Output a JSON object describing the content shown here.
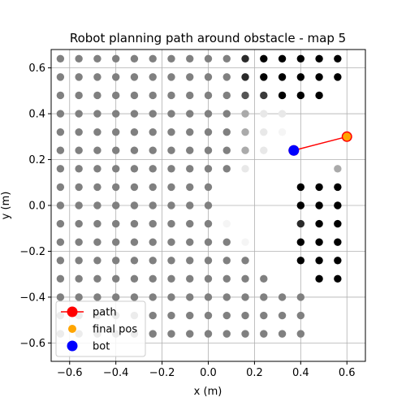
{
  "chart_data": {
    "type": "scatter",
    "title": "Robot planning path around obstacle - map 5",
    "xlabel": "x (m)",
    "ylabel": "y (m)",
    "xlim": [
      -0.68,
      0.68
    ],
    "ylim": [
      -0.68,
      0.68
    ],
    "grid": true,
    "xticks": [
      -0.6,
      -0.4,
      -0.2,
      0.0,
      0.2,
      0.4,
      0.6
    ],
    "yticks": [
      -0.6,
      -0.4,
      -0.2,
      0.0,
      0.2,
      0.4,
      0.6
    ],
    "xtick_labels": [
      "−0.6",
      "−0.4",
      "−0.2",
      "0.0",
      "0.2",
      "0.4",
      "0.6"
    ],
    "ytick_labels": [
      "−0.6",
      "−0.4",
      "−0.2",
      "0.0",
      "0.2",
      "0.4",
      "0.6"
    ],
    "map_points": {
      "x_values": [
        -0.64,
        -0.56,
        -0.48,
        -0.4,
        -0.32,
        -0.24,
        -0.16,
        -0.08,
        0.0,
        0.08,
        0.16,
        0.24,
        0.32,
        0.4,
        0.48,
        0.56
      ],
      "y_values": [
        0.64,
        0.56,
        0.48,
        0.4,
        0.32,
        0.24,
        0.16,
        0.08,
        0.0,
        -0.08,
        -0.16,
        -0.24,
        -0.32,
        -0.4,
        -0.48,
        -0.56
      ],
      "gray_levels": [
        "GGGGGGGGGGdKKKKK",
        "GGGGGGGGGGdKKKKK",
        "GGGGGGGGGGgmKKK.",
        "GGGGGGGGGGlvv...",
        "GGGGGGGGGGlvw...",
        "GGGGGGGGGGlv....",
        "GGGGGGGGGGv....l",
        "GGGGGGGGG....KKK",
        "GGGGGGGGG....KKK",
        "GGGGGGGGGw...dKK",
        "GGGGGGGGGGw..KKK",
        "GGGGGGGGGGG..KKK",
        "GGGGGGGGGGGG..KK",
        "GGGGGGGGGGGGGG..",
        "GGGGGGGGGGGGGG..",
        "GGGGGGGGGGGGGG.."
      ],
      "color_key": {
        "G": "#808080",
        "K": "#000000",
        "d": "#2a2a2a",
        "g": "#555555",
        "m": "#3a3a3a",
        "l": "#aaaaaa",
        "v": "#e8e8e8",
        "w": "#f5f5f5"
      }
    },
    "series": [
      {
        "name": "path",
        "x": [
          0.37,
          0.6
        ],
        "y": [
          0.24,
          0.3
        ],
        "color": "#ff0000",
        "marker_color": "#ff0000"
      },
      {
        "name": "final pos",
        "x": [
          0.6
        ],
        "y": [
          0.3
        ],
        "color": "#ffa500"
      },
      {
        "name": "bot",
        "x": [
          0.37
        ],
        "y": [
          0.24
        ],
        "color": "#0000ff"
      }
    ],
    "legend": {
      "position": "lower-left",
      "entries": [
        "path",
        "final pos",
        "bot"
      ]
    }
  }
}
